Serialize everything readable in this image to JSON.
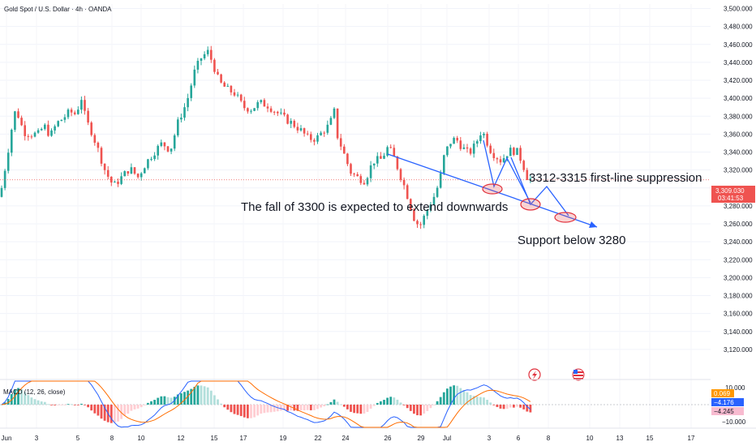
{
  "header": {
    "title": "Gold Spot / U.S. Dollar · 4h · OANDA"
  },
  "colors": {
    "up": "#26a69a",
    "down": "#ef5350",
    "annotation": "#2962ff",
    "ellipse": "#e0313d",
    "macd_line": "#2962ff",
    "signal_line": "#ff6d00"
  },
  "icons": [
    "flash-event-icon",
    "us-flag-event-icon"
  ],
  "chart_data": {
    "type": "candlestick",
    "symbol": "Gold Spot / U.S. Dollar",
    "interval": "4h",
    "source": "OANDA",
    "ylim": [
      3100,
      3505
    ],
    "y_ticks": [
      "3,500.000",
      "3,480.000",
      "3,460.000",
      "3,440.000",
      "3,420.000",
      "3,400.000",
      "3,380.000",
      "3,360.000",
      "3,340.000",
      "3,320.000",
      "3,300.000",
      "3,280.000",
      "3,260.000",
      "3,240.000",
      "3,220.000",
      "3,200.000",
      "3,180.000",
      "3,160.000",
      "3,140.000",
      "3,120.000"
    ],
    "x_ticks": [
      "Jun",
      "3",
      "5",
      "8",
      "10",
      "12",
      "15",
      "17",
      "19",
      "22",
      "24",
      "26",
      "29",
      "Jul",
      "3",
      "6",
      "8",
      "10",
      "13",
      "15",
      "17"
    ],
    "last_price": "3,309.030",
    "countdown": "03:41:53",
    "price_anchors": [
      [
        0,
        3290
      ],
      [
        3,
        3305
      ],
      [
        10,
        3342
      ],
      [
        16,
        3375
      ],
      [
        20,
        3390
      ],
      [
        24,
        3375
      ],
      [
        30,
        3362
      ],
      [
        38,
        3360
      ],
      [
        48,
        3360
      ],
      [
        54,
        3370
      ],
      [
        62,
        3358
      ],
      [
        70,
        3372
      ],
      [
        78,
        3378
      ],
      [
        86,
        3385
      ],
      [
        94,
        3382
      ],
      [
        100,
        3402
      ],
      [
        106,
        3375
      ],
      [
        112,
        3365
      ],
      [
        120,
        3345
      ],
      [
        130,
        3318
      ],
      [
        140,
        3302
      ],
      [
        150,
        3312
      ],
      [
        160,
        3322
      ],
      [
        170,
        3312
      ],
      [
        180,
        3328
      ],
      [
        190,
        3340
      ],
      [
        200,
        3350
      ],
      [
        210,
        3342
      ],
      [
        220,
        3375
      ],
      [
        230,
        3395
      ],
      [
        240,
        3430
      ],
      [
        248,
        3445
      ],
      [
        256,
        3452
      ],
      [
        262,
        3440
      ],
      [
        270,
        3418
      ],
      [
        280,
        3410
      ],
      [
        290,
        3405
      ],
      [
        300,
        3390
      ],
      [
        310,
        3388
      ],
      [
        320,
        3395
      ],
      [
        330,
        3392
      ],
      [
        340,
        3385
      ],
      [
        350,
        3378
      ],
      [
        360,
        3372
      ],
      [
        370,
        3365
      ],
      [
        380,
        3355
      ],
      [
        390,
        3355
      ],
      [
        400,
        3365
      ],
      [
        406,
        3370
      ],
      [
        412,
        3385
      ],
      [
        416,
        3358
      ],
      [
        424,
        3338
      ],
      [
        432,
        3318
      ],
      [
        440,
        3312
      ],
      [
        450,
        3308
      ],
      [
        460,
        3330
      ],
      [
        470,
        3332
      ],
      [
        478,
        3345
      ],
      [
        484,
        3338
      ],
      [
        492,
        3318
      ],
      [
        500,
        3298
      ],
      [
        506,
        3280
      ],
      [
        512,
        3262
      ],
      [
        518,
        3258
      ],
      [
        524,
        3270
      ],
      [
        530,
        3282
      ],
      [
        536,
        3292
      ],
      [
        542,
        3308
      ],
      [
        548,
        3338
      ],
      [
        556,
        3352
      ],
      [
        562,
        3355
      ],
      [
        570,
        3345
      ],
      [
        578,
        3338
      ],
      [
        586,
        3348
      ],
      [
        594,
        3365
      ],
      [
        600,
        3352
      ],
      [
        606,
        3340
      ],
      [
        612,
        3335
      ],
      [
        618,
        3330
      ],
      [
        624,
        3338
      ],
      [
        630,
        3342
      ],
      [
        638,
        3340
      ],
      [
        644,
        3328
      ],
      [
        650,
        3312
      ],
      [
        656,
        3309
      ]
    ],
    "annotations": [
      {
        "text": "3312-3315 first-line suppression"
      },
      {
        "text": "The fall of 3300 is expected to extend downwards"
      },
      {
        "text": "Support below 3280"
      }
    ],
    "macd": {
      "label": "MACD (12, 26, close)",
      "fast": 12,
      "slow": 26,
      "source": "close",
      "values": {
        "histogram": "0.069",
        "macd": "−4.176",
        "signal": "−4.245"
      },
      "y_ticks": [
        "10.000",
        "−10.000"
      ]
    }
  }
}
